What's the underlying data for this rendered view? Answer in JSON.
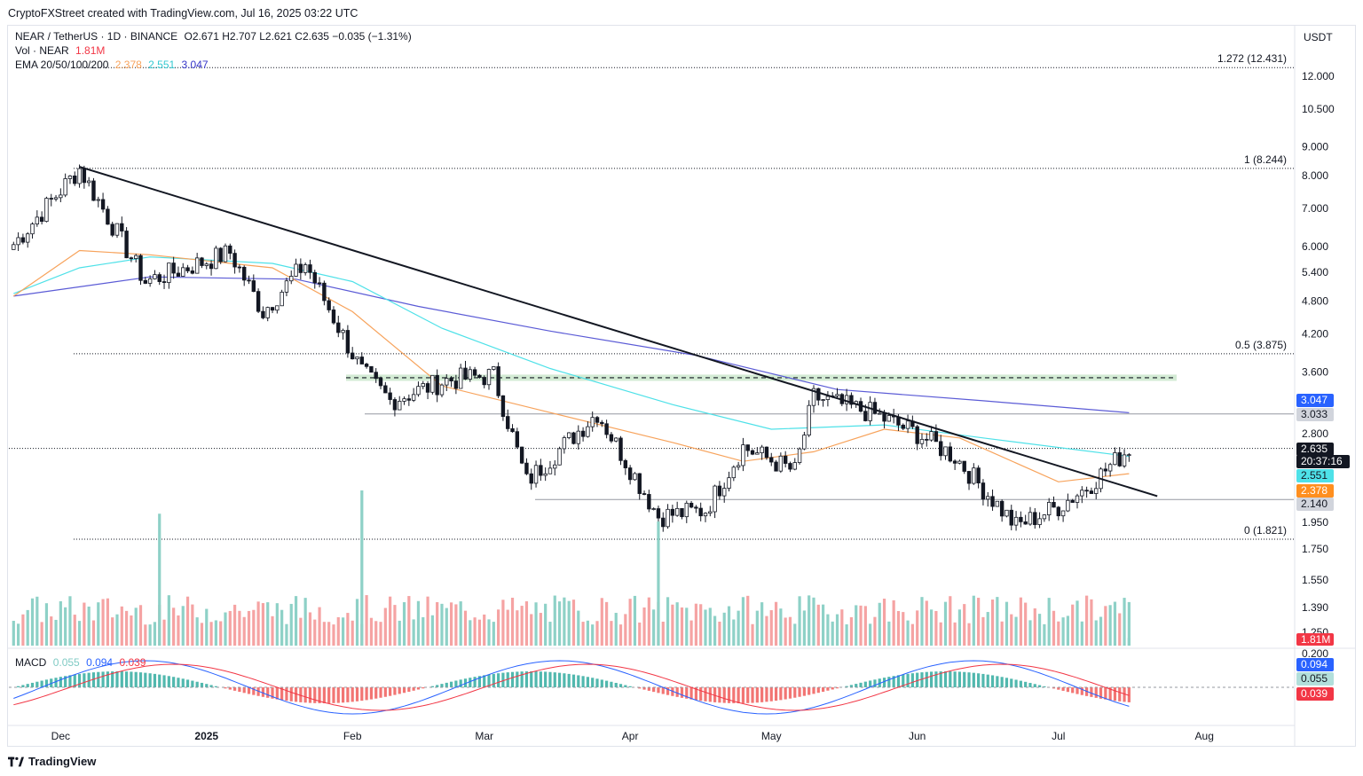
{
  "header": {
    "text": "CryptoFXStreet created with TradingView.com, Jul 16, 2025 03:22 UTC"
  },
  "legend": {
    "symbol": "NEAR / TetherUS · 1D · BINANCE",
    "ohlc": "O2.671  H2.707  L2.621  C2.635  −0.035 (−1.31%)",
    "vol_label": "Vol · NEAR",
    "vol_value": "1.81M",
    "ema_label": "EMA 20/50/100/200",
    "ema20": "2.378",
    "ema50": "2.551",
    "ema200": "3.047",
    "macd_label": "MACD",
    "macd_hist": "0.055",
    "macd_line": "0.094",
    "macd_signal": "0.039"
  },
  "footer": {
    "brand": "TradingView"
  },
  "colors": {
    "up": "#131722",
    "down": "#131722",
    "ema20": "#f7a35c",
    "ema50": "#4ee1e8",
    "ema200": "#5b5bd6",
    "vol_up": "#8ed1c7",
    "vol_down": "#f5a3a3",
    "macd_pos": "#26a69a",
    "macd_neg": "#ef5350",
    "macd_line": "#2962ff",
    "signal_line": "#f23645",
    "zone": "#c8e6c9"
  },
  "chart_data": {
    "type": "candlestick",
    "quote_currency": "USDT",
    "y_scale": "log",
    "ylim": [
      1.65,
      13.2
    ],
    "price_ticks": [
      "12.000",
      "10.500",
      "9.000",
      "8.000",
      "7.000",
      "6.000",
      "5.400",
      "4.800",
      "4.200",
      "3.600",
      "2.800",
      "1.950",
      "1.750",
      "1.550",
      "1.390",
      "1.250"
    ],
    "time_labels": [
      {
        "label": "Dec",
        "date": "2024-12-01"
      },
      {
        "label": "2025",
        "date": "2025-01-01",
        "bold": true
      },
      {
        "label": "Feb",
        "date": "2025-02-01"
      },
      {
        "label": "Mar",
        "date": "2025-03-01"
      },
      {
        "label": "Apr",
        "date": "2025-04-01"
      },
      {
        "label": "May",
        "date": "2025-05-01"
      },
      {
        "label": "Jun",
        "date": "2025-06-01"
      },
      {
        "label": "Jul",
        "date": "2025-07-01"
      },
      {
        "label": "Aug",
        "date": "2025-08-01"
      }
    ],
    "fib_levels": [
      {
        "label": "1.272 (12.431)",
        "price": 12.431
      },
      {
        "label": "1 (8.244)",
        "price": 8.244
      },
      {
        "label": "0.5 (3.875)",
        "price": 3.875
      },
      {
        "label": "0 (1.821)",
        "price": 1.821
      }
    ],
    "horizontal_levels": [
      3.033,
      2.14
    ],
    "resistance_zone": [
      3.47,
      3.56
    ],
    "price_badges": [
      {
        "value": "3.047",
        "series": "ema200"
      },
      {
        "value": "3.033",
        "series": "level"
      },
      {
        "value": "2.635",
        "series": "last"
      },
      {
        "value": "20:37:16",
        "series": "countdown"
      },
      {
        "value": "2.551",
        "series": "ema50"
      },
      {
        "value": "2.378",
        "series": "ema20"
      },
      {
        "value": "2.140",
        "series": "level"
      }
    ],
    "trendline": {
      "from": {
        "date": "2024-12-05",
        "price": 8.3
      },
      "to": {
        "date": "2025-07-22",
        "price": 2.17
      }
    },
    "key_candles": [
      {
        "date": "2024-11-21",
        "close": 6.05
      },
      {
        "date": "2024-12-05",
        "close": 8.24
      },
      {
        "date": "2024-12-19",
        "close": 5.2
      },
      {
        "date": "2025-01-06",
        "close": 5.85
      },
      {
        "date": "2025-01-13",
        "close": 4.6
      },
      {
        "date": "2025-01-22",
        "close": 5.6
      },
      {
        "date": "2025-02-03",
        "close": 3.6
      },
      {
        "date": "2025-02-09",
        "close": 3.2
      },
      {
        "date": "2025-02-21",
        "close": 3.48
      },
      {
        "date": "2025-03-03",
        "close": 3.55
      },
      {
        "date": "2025-03-10",
        "close": 2.3
      },
      {
        "date": "2025-03-25",
        "close": 3.05
      },
      {
        "date": "2025-04-07",
        "close": 2.0
      },
      {
        "date": "2025-04-17",
        "close": 2.05
      },
      {
        "date": "2025-04-25",
        "close": 2.65
      },
      {
        "date": "2025-05-06",
        "close": 2.4
      },
      {
        "date": "2025-05-10",
        "close": 3.25
      },
      {
        "date": "2025-05-22",
        "close": 3.05
      },
      {
        "date": "2025-06-01",
        "close": 2.8
      },
      {
        "date": "2025-06-09",
        "close": 2.55
      },
      {
        "date": "2025-06-22",
        "close": 1.92
      },
      {
        "date": "2025-07-01",
        "close": 2.08
      },
      {
        "date": "2025-07-07",
        "close": 2.25
      },
      {
        "date": "2025-07-16",
        "close": 2.635
      }
    ],
    "ema20_path": [
      {
        "date": "2024-11-21",
        "price": 4.9
      },
      {
        "date": "2024-12-05",
        "price": 5.9
      },
      {
        "date": "2024-12-20",
        "price": 5.8
      },
      {
        "date": "2025-01-15",
        "price": 5.5
      },
      {
        "date": "2025-02-01",
        "price": 4.6
      },
      {
        "date": "2025-02-20",
        "price": 3.4
      },
      {
        "date": "2025-03-15",
        "price": 3.05
      },
      {
        "date": "2025-04-10",
        "price": 2.7
      },
      {
        "date": "2025-04-25",
        "price": 2.5
      },
      {
        "date": "2025-05-10",
        "price": 2.6
      },
      {
        "date": "2025-05-25",
        "price": 2.85
      },
      {
        "date": "2025-06-10",
        "price": 2.75
      },
      {
        "date": "2025-07-01",
        "price": 2.3
      },
      {
        "date": "2025-07-16",
        "price": 2.378
      }
    ],
    "ema50_path": [
      {
        "date": "2024-11-21",
        "price": 4.95
      },
      {
        "date": "2024-12-05",
        "price": 5.5
      },
      {
        "date": "2024-12-20",
        "price": 5.75
      },
      {
        "date": "2025-01-15",
        "price": 5.6
      },
      {
        "date": "2025-02-01",
        "price": 5.2
      },
      {
        "date": "2025-02-20",
        "price": 4.3
      },
      {
        "date": "2025-03-15",
        "price": 3.65
      },
      {
        "date": "2025-04-10",
        "price": 3.15
      },
      {
        "date": "2025-05-01",
        "price": 2.85
      },
      {
        "date": "2025-05-25",
        "price": 2.9
      },
      {
        "date": "2025-06-15",
        "price": 2.75
      },
      {
        "date": "2025-07-16",
        "price": 2.551
      }
    ],
    "ema200_path": [
      {
        "date": "2024-11-21",
        "price": 4.9
      },
      {
        "date": "2024-12-20",
        "price": 5.3
      },
      {
        "date": "2025-01-20",
        "price": 5.25
      },
      {
        "date": "2025-02-15",
        "price": 4.7
      },
      {
        "date": "2025-03-15",
        "price": 4.25
      },
      {
        "date": "2025-04-15",
        "price": 3.85
      },
      {
        "date": "2025-05-15",
        "price": 3.35
      },
      {
        "date": "2025-06-15",
        "price": 3.2
      },
      {
        "date": "2025-07-16",
        "price": 3.047
      }
    ],
    "volume_peaks": [
      {
        "date": "2024-12-22",
        "value": 0.85
      },
      {
        "date": "2025-02-03",
        "value": 1.0
      },
      {
        "date": "2025-04-07",
        "value": 0.8
      },
      {
        "date": "2025-07-16",
        "value": 0.05
      }
    ],
    "macd_ticks": [
      "0.200",
      "0.094",
      "0.055",
      "0.039"
    ]
  }
}
